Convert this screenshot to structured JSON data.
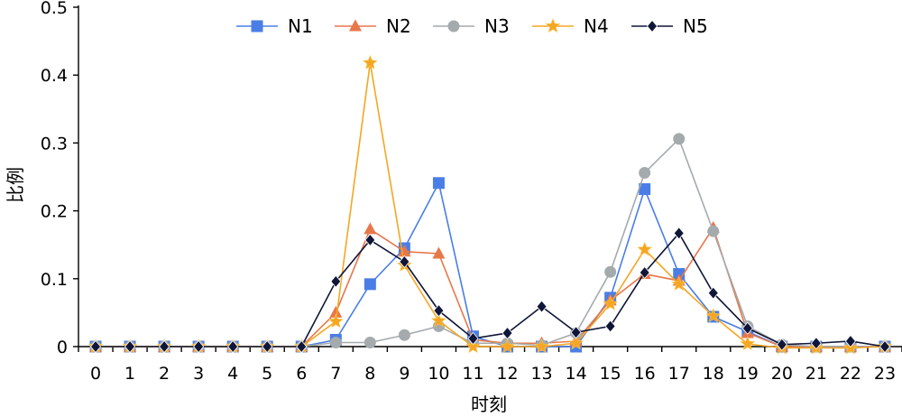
{
  "chart_data": {
    "type": "line",
    "xlabel": "时刻",
    "ylabel": "比例",
    "x": [
      0,
      1,
      2,
      3,
      4,
      5,
      6,
      7,
      8,
      9,
      10,
      11,
      12,
      13,
      14,
      15,
      16,
      17,
      18,
      19,
      20,
      21,
      22,
      23
    ],
    "x_tick_labels": [
      "0",
      "1",
      "2",
      "3",
      "4",
      "5",
      "6",
      "7",
      "8",
      "9",
      "10",
      "11",
      "12",
      "13",
      "14",
      "15",
      "16",
      "17",
      "18",
      "19",
      "20",
      "21",
      "22",
      "23"
    ],
    "ylim": [
      0,
      0.5
    ],
    "y_ticks": [
      0,
      0.1,
      0.2,
      0.3,
      0.4,
      0.5
    ],
    "y_tick_labels": [
      "0",
      "0.1",
      "0.2",
      "0.3",
      "0.4",
      "0.5"
    ],
    "legend_position": "top",
    "grid": false,
    "series": [
      {
        "name": "N1",
        "color": "#4A7EE6",
        "marker": "square",
        "values": [
          0,
          0,
          0,
          0,
          0,
          0,
          0,
          0.01,
          0.092,
          0.145,
          0.241,
          0.015,
          0,
          0,
          0,
          0.072,
          0.232,
          0.107,
          0.044,
          0.022,
          0,
          0,
          0,
          0
        ]
      },
      {
        "name": "N2",
        "color": "#E8774A",
        "marker": "triangle",
        "values": [
          0,
          0,
          0,
          0,
          0,
          0,
          0,
          0.05,
          0.173,
          0.14,
          0.137,
          0.01,
          0.005,
          0.005,
          0.008,
          0.068,
          0.107,
          0.097,
          0.175,
          0.02,
          0,
          0,
          0,
          0
        ]
      },
      {
        "name": "N3",
        "color": "#A5AAAD",
        "marker": "circle",
        "values": [
          0,
          0,
          0,
          0,
          0,
          0,
          0,
          0.006,
          0.006,
          0.017,
          0.03,
          0.005,
          0.005,
          0.002,
          0.02,
          0.11,
          0.256,
          0.306,
          0.17,
          0.03,
          0.003,
          0,
          0,
          0
        ]
      },
      {
        "name": "N4",
        "color": "#F5A623",
        "marker": "star",
        "values": [
          0,
          0,
          0,
          0,
          0,
          0,
          0,
          0.037,
          0.418,
          0.12,
          0.038,
          0,
          0,
          0,
          0.005,
          0.063,
          0.143,
          0.092,
          0.045,
          0.004,
          -0.002,
          -0.002,
          -0.002,
          0
        ]
      },
      {
        "name": "N5",
        "color": "#0F1637",
        "marker": "diamond",
        "values": [
          0,
          0,
          0,
          0,
          0,
          0,
          0,
          0.096,
          0.157,
          0.125,
          0.053,
          0.012,
          0.02,
          0.059,
          0.021,
          0.03,
          0.109,
          0.167,
          0.079,
          0.027,
          0.003,
          0.005,
          0.008,
          0
        ]
      }
    ]
  }
}
